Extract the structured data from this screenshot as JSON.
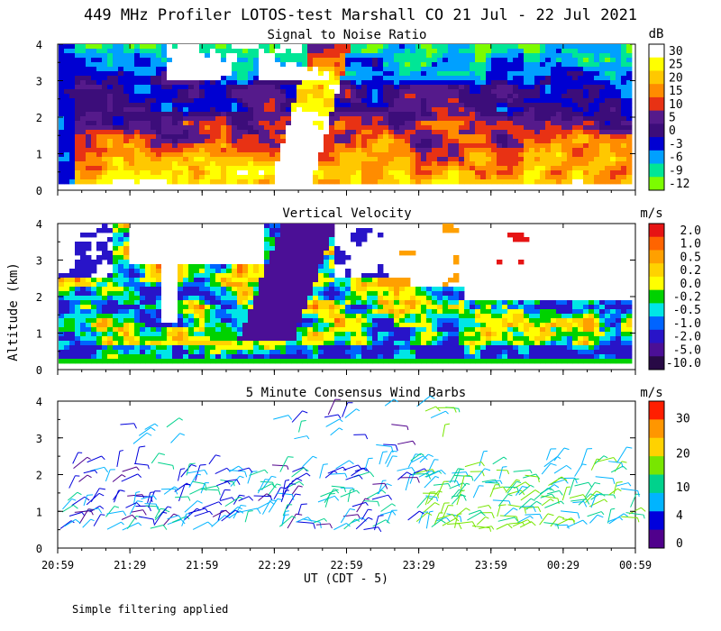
{
  "figure_title": "449 MHz Profiler LOTOS-test Marshall CO 21 Jul - 22 Jul 2021",
  "ylabel": "Altitude (km)",
  "xlabel": "UT (CDT - 5)",
  "footnote": "Simple filtering applied",
  "chart_data": [
    {
      "type": "heatmap",
      "title": "Signal to Noise Ratio",
      "xlabel": "UT (CDT - 5)",
      "ylabel": "Altitude (km)",
      "x_ticks": [
        "20:59",
        "21:29",
        "21:59",
        "22:29",
        "22:59",
        "23:29",
        "23:59",
        "00:29",
        "00:59"
      ],
      "y_ticks": [
        0,
        1,
        2,
        3,
        4
      ],
      "ylim": [
        0,
        4
      ],
      "colorbar": {
        "unit": "dB",
        "labels": [
          "30",
          "25",
          "20",
          "15",
          "10",
          "5",
          "0",
          "-3",
          "-6",
          "-9",
          "-12"
        ],
        "colors": [
          "#ffffff",
          "#ffff00",
          "#ffc800",
          "#ff8c00",
          "#e83214",
          "#551a8b",
          "#3c0d7a",
          "#0000d2",
          "#00a0ff",
          "#00e696",
          "#7cfc00"
        ]
      }
    },
    {
      "type": "heatmap",
      "title": "Vertical Velocity",
      "xlabel": "UT (CDT - 5)",
      "ylabel": "Altitude (km)",
      "x_ticks": [
        "20:59",
        "21:29",
        "21:59",
        "22:29",
        "22:59",
        "23:29",
        "23:59",
        "00:29",
        "00:59"
      ],
      "y_ticks": [
        0,
        1,
        2,
        3,
        4
      ],
      "ylim": [
        0,
        4
      ],
      "colorbar": {
        "unit": "m/s",
        "labels": [
          "2.0",
          "1.0",
          "0.5",
          "0.2",
          "0.0",
          "-0.2",
          "-0.5",
          "-1.0",
          "-2.0",
          "-5.0",
          "-10.0"
        ],
        "colors": [
          "#e61414",
          "#ff6400",
          "#ffa000",
          "#ffd200",
          "#ffff00",
          "#00d200",
          "#00e6e6",
          "#0064ff",
          "#2814c8",
          "#4b0f96",
          "#280a46"
        ]
      }
    },
    {
      "type": "wind_barbs",
      "title": "5 Minute Consensus Wind Barbs",
      "xlabel": "UT (CDT - 5)",
      "ylabel": "Altitude (km)",
      "x_ticks": [
        "20:59",
        "21:29",
        "21:59",
        "22:29",
        "22:59",
        "23:29",
        "23:59",
        "00:29",
        "00:59"
      ],
      "y_ticks": [
        0,
        1,
        2,
        3,
        4
      ],
      "ylim": [
        0,
        4
      ],
      "colorbar": {
        "unit": "m/s",
        "labels": [
          "30",
          "20",
          "10",
          "4",
          "0"
        ],
        "colors": [
          "#ff1e00",
          "#ff9600",
          "#ffd200",
          "#78e600",
          "#00d28c",
          "#00b4ff",
          "#0000dc",
          "#50008c"
        ]
      }
    }
  ]
}
